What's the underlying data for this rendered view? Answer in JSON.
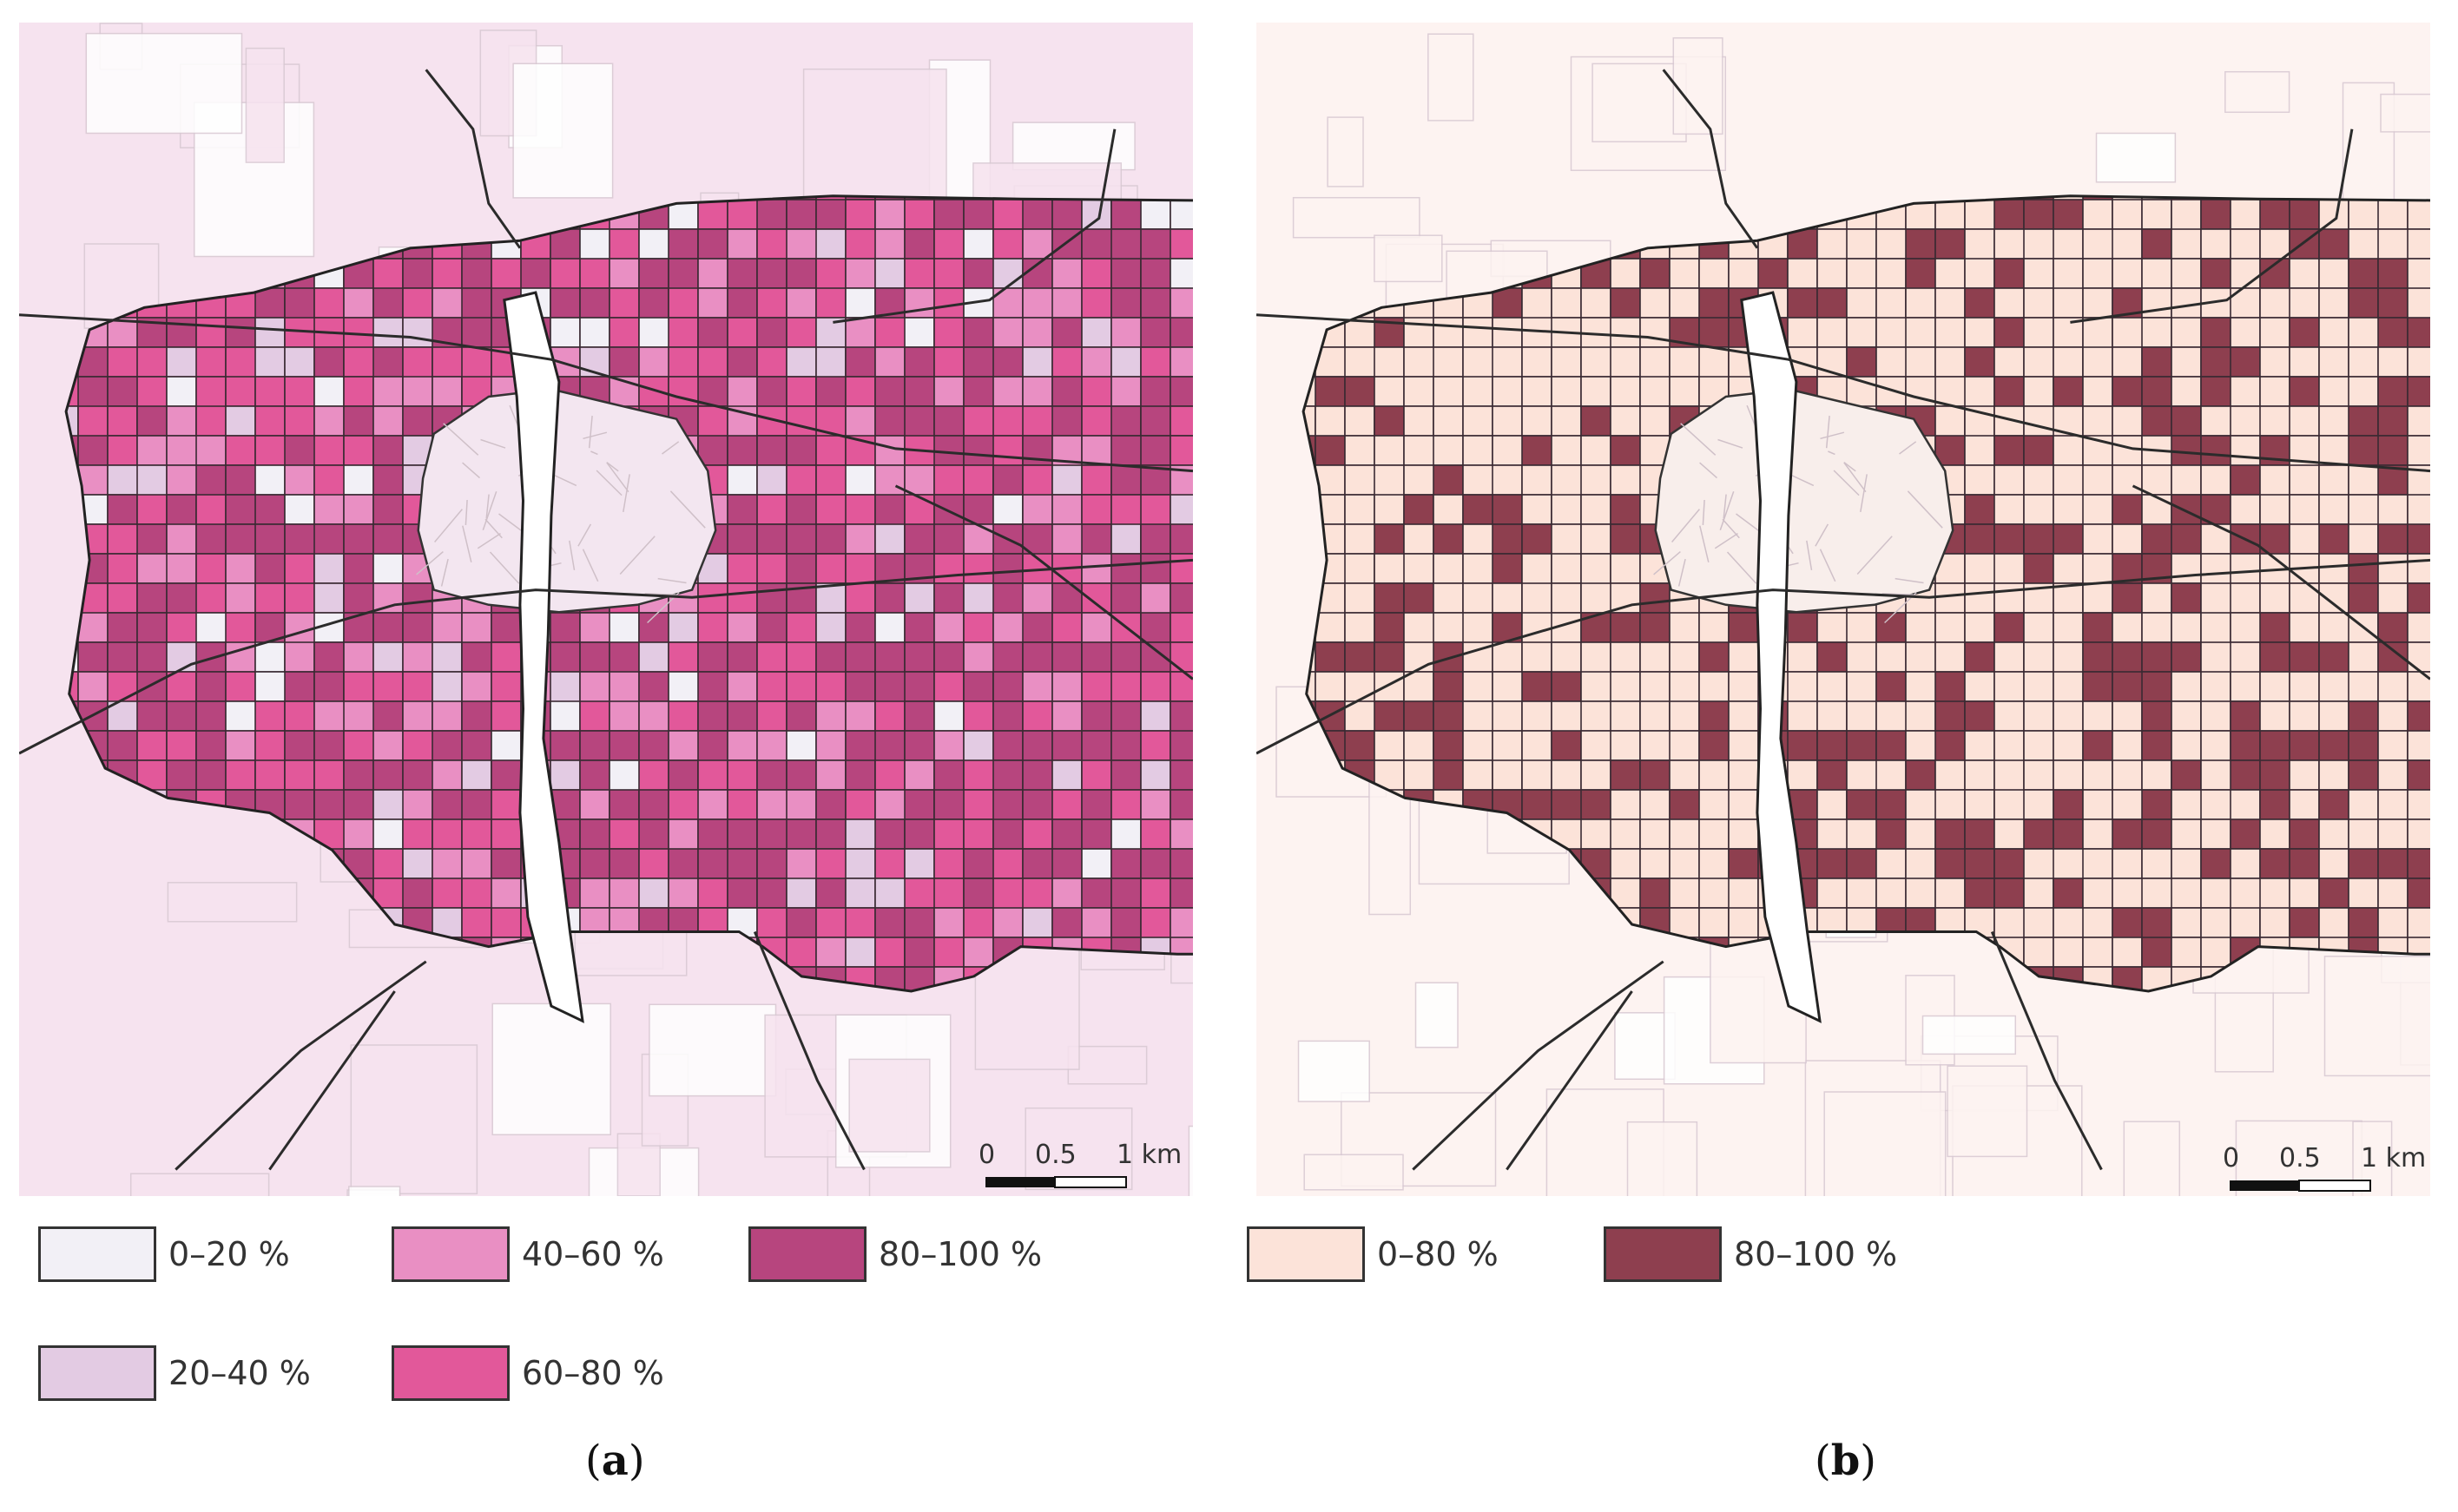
{
  "panels": [
    {
      "id": "a",
      "caption_open": "(",
      "caption_letter": "a",
      "caption_close": ")",
      "colors": {
        "background": "#f6e3ef",
        "water": "#ffffff",
        "centre": "#f3e6f0"
      },
      "legend": [
        {
          "label": "0–20 %",
          "color": "#f2f0f6"
        },
        {
          "label": "20–40 %",
          "color": "#e3cbe3"
        },
        {
          "label": "40–60 %",
          "color": "#e98fc3"
        },
        {
          "label": "60–80 %",
          "color": "#e2589a"
        },
        {
          "label": "80–100 %",
          "color": "#b7457e"
        }
      ],
      "scale": {
        "ticks": [
          "0",
          "0.5",
          "1 km"
        ]
      }
    },
    {
      "id": "b",
      "caption_open": "(",
      "caption_letter": "b",
      "caption_close": ")",
      "colors": {
        "background": "#fdf3f1",
        "water": "#ffffff",
        "centre": "#f8eeeb"
      },
      "legend": [
        {
          "label": "0–80 %",
          "color": "#fce3d9"
        },
        {
          "label": "80–100 %",
          "color": "#8e3f4f"
        }
      ],
      "scale": {
        "ticks": [
          "0",
          "0.5",
          "1 km"
        ]
      }
    }
  ]
}
